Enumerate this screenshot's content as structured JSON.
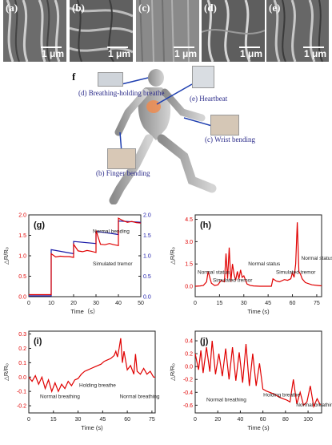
{
  "sem_panels": [
    {
      "label": "(a)",
      "scale": "1 μm"
    },
    {
      "label": "(b)",
      "scale": "1 μm"
    },
    {
      "label": "(c)",
      "scale": "1 μm"
    },
    {
      "label": "(d)",
      "scale": "1 μm"
    },
    {
      "label": "(e)",
      "scale": "1 μm"
    }
  ],
  "illustration": {
    "panel_label": "f",
    "labels": {
      "breath": "(d) Breathing-holding  breathe",
      "heartbeat": "(e) Heartbeat",
      "wrist": "(c) Wrist bending",
      "finger": "(b) Finger bending"
    }
  },
  "chart_data": [
    {
      "panel": "(g)",
      "type": "line",
      "xlabel": "Time（s）",
      "ylabel": "△R/R₀",
      "xlim": [
        0,
        50
      ],
      "ylim": [
        0,
        2.0
      ],
      "xticks": [
        0,
        10,
        20,
        30,
        40,
        50
      ],
      "yticks": [
        0.0,
        0.5,
        1.0,
        1.5,
        2.0
      ],
      "y2ticks": [
        0.0,
        0.5,
        1.0,
        1.5,
        2.0
      ],
      "annotations": [
        "Normal bending",
        "Simulated tremor"
      ],
      "series": [
        {
          "name": "Normal bending",
          "color": "#1a1aa8",
          "x": [
            0,
            10,
            10,
            20,
            20,
            30,
            30,
            40,
            40,
            50
          ],
          "y": [
            0.02,
            0.02,
            1.15,
            1.05,
            1.35,
            1.3,
            1.6,
            1.52,
            1.85,
            1.82
          ]
        },
        {
          "name": "Simulated tremor",
          "color": "#e00000",
          "x": [
            0,
            10,
            10,
            12,
            14,
            16,
            18,
            20,
            20,
            22,
            24,
            26,
            28,
            30,
            30,
            32,
            34,
            36,
            38,
            40,
            40,
            42,
            44,
            46,
            48,
            50
          ],
          "y": [
            0.05,
            0.05,
            1.05,
            0.97,
            0.99,
            0.98,
            0.98,
            0.96,
            1.28,
            1.12,
            1.1,
            1.13,
            1.11,
            1.08,
            1.62,
            1.28,
            1.27,
            1.3,
            1.27,
            1.25,
            1.92,
            1.86,
            1.82,
            1.84,
            1.81,
            1.8
          ]
        }
      ]
    },
    {
      "panel": "(h)",
      "type": "line",
      "xlabel": "Time (s)",
      "ylabel": "△R/R₀",
      "xlim": [
        0,
        78
      ],
      "ylim": [
        -0.7,
        4.8
      ],
      "xticks": [
        0,
        15,
        30,
        45,
        60,
        75
      ],
      "yticks": [
        0.0,
        1.5,
        3.0,
        4.5
      ],
      "annotations": [
        "Normal status",
        "Simulated tremor",
        "Normal status",
        "Simulated tremor",
        "Normal status"
      ],
      "series": [
        {
          "name": "",
          "color": "#e00000",
          "x": [
            0,
            3,
            5,
            7,
            8,
            9,
            10,
            12,
            14,
            16,
            18,
            19,
            20,
            21,
            22,
            23,
            24,
            25,
            26,
            27,
            28,
            29,
            30,
            32,
            34,
            36,
            40,
            44,
            47,
            48,
            50,
            52,
            55,
            57,
            59,
            60,
            61,
            62,
            63,
            64,
            65,
            66,
            68,
            72,
            76,
            78
          ],
          "y": [
            0,
            0.02,
            0.05,
            0.3,
            1.0,
            0.6,
            0.2,
            0.05,
            0.1,
            0.4,
            0.3,
            2.2,
            0.5,
            2.6,
            0.3,
            1.5,
            0.8,
            0.4,
            1.0,
            0.5,
            1.1,
            0.6,
            0.7,
            0.15,
            0.05,
            0.02,
            0,
            0,
            0,
            0.5,
            0.35,
            0.3,
            0.45,
            0.4,
            0.5,
            0.9,
            0.6,
            1.5,
            4.3,
            1.0,
            0.8,
            0.5,
            0.25,
            0.1,
            0.05,
            0.03
          ]
        }
      ]
    },
    {
      "panel": "(i)",
      "type": "line",
      "xlabel": "Time (s)",
      "ylabel": "△R/R₀",
      "xlim": [
        0,
        77
      ],
      "ylim": [
        -0.25,
        0.32
      ],
      "xticks": [
        0,
        15,
        30,
        45,
        60,
        75
      ],
      "yticks": [
        -0.2,
        -0.1,
        0.0,
        0.1,
        0.2,
        0.3
      ],
      "annotations": [
        "Normal breathing",
        "Holding breathe",
        "Normal breathing"
      ],
      "series": [
        {
          "name": "",
          "color": "#e00000",
          "x": [
            0,
            2,
            4,
            6,
            8,
            10,
            12,
            14,
            16,
            18,
            20,
            22,
            24,
            26,
            28,
            30,
            32,
            34,
            36,
            38,
            40,
            42,
            44,
            46,
            48,
            50,
            52,
            53,
            54,
            55,
            56,
            57,
            58,
            60,
            62,
            64,
            65,
            66,
            67,
            68,
            70,
            72,
            74,
            76,
            77
          ],
          "y": [
            0.0,
            -0.03,
            0.01,
            -0.05,
            0.0,
            -0.08,
            -0.02,
            -0.1,
            -0.04,
            -0.1,
            -0.05,
            -0.08,
            -0.03,
            -0.06,
            -0.02,
            -0.01,
            0.02,
            0.04,
            0.05,
            0.06,
            0.07,
            0.08,
            0.09,
            0.11,
            0.12,
            0.13,
            0.15,
            0.18,
            0.14,
            0.2,
            0.27,
            0.1,
            0.18,
            0.05,
            0.08,
            0.02,
            0.16,
            0.04,
            0.03,
            0.02,
            0.06,
            0.02,
            0.04,
            0.0,
            0.0
          ]
        }
      ]
    },
    {
      "panel": "(j)",
      "type": "line",
      "xlabel": "Time (s)",
      "ylabel": "△R/R₀",
      "xlim": [
        0,
        112
      ],
      "ylim": [
        -0.72,
        0.55
      ],
      "xticks": [
        0,
        20,
        40,
        60,
        80,
        100
      ],
      "yticks": [
        -0.6,
        -0.4,
        -0.2,
        0.0,
        0.2,
        0.4
      ],
      "annotations": [
        "Normal breathing",
        "Holding breathe",
        "Normal breathing"
      ],
      "series": [
        {
          "name": "",
          "color": "#e00000",
          "x": [
            0,
            3,
            5,
            7,
            10,
            13,
            15,
            18,
            21,
            24,
            27,
            30,
            33,
            36,
            39,
            42,
            45,
            48,
            51,
            54,
            57,
            60,
            63,
            66,
            69,
            72,
            75,
            78,
            81,
            84,
            87,
            90,
            93,
            96,
            99,
            102,
            105,
            108,
            111
          ],
          "y": [
            0.2,
            -0.05,
            0.25,
            -0.1,
            0.3,
            -0.08,
            0.4,
            -0.12,
            0.2,
            -0.15,
            0.28,
            -0.2,
            0.3,
            -0.22,
            0.22,
            -0.25,
            0.35,
            -0.3,
            0.2,
            -0.3,
            0.05,
            -0.35,
            -0.38,
            -0.4,
            -0.42,
            -0.45,
            -0.48,
            -0.5,
            -0.52,
            -0.55,
            -0.2,
            -0.58,
            -0.4,
            -0.6,
            -0.55,
            -0.3,
            -0.62,
            -0.5,
            -0.6
          ]
        }
      ]
    }
  ]
}
